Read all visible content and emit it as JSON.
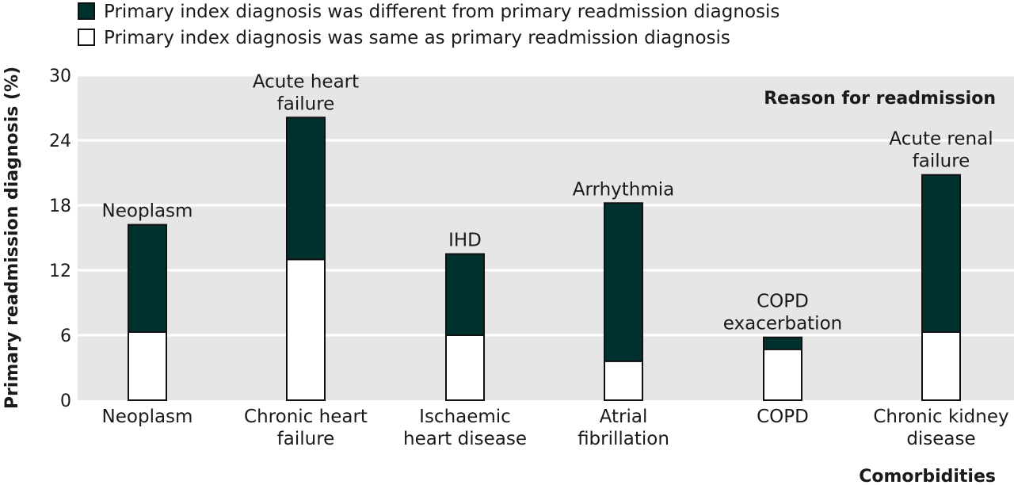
{
  "chart_data": {
    "type": "bar",
    "stacked": true,
    "title": "",
    "xlabel": "Comorbidities",
    "ylabel": "Primary readmission diagnosis (%)",
    "panel_label": "Reason for readmission",
    "ylim": [
      0,
      30
    ],
    "yticks": [
      0,
      6,
      12,
      18,
      24,
      30
    ],
    "grid": true,
    "legend_position": "top-left",
    "categories": [
      [
        "Neoplasm"
      ],
      [
        "Chronic heart",
        "failure"
      ],
      [
        "Ischaemic",
        "heart disease"
      ],
      [
        "Atrial",
        "fibrillation"
      ],
      [
        "COPD"
      ],
      [
        "Chronic kidney",
        "disease"
      ]
    ],
    "bar_labels": [
      [
        "Neoplasm"
      ],
      [
        "Acute heart",
        "failure"
      ],
      [
        "IHD"
      ],
      [
        "Arrhythmia"
      ],
      [
        "COPD",
        "exacerbation"
      ],
      [
        "Acute renal",
        "failure"
      ]
    ],
    "series": [
      {
        "name": "Primary index diagnosis was same as primary readmission diagnosis",
        "color": "#ffffff",
        "values": [
          6.3,
          13.0,
          6.0,
          3.6,
          4.7,
          6.3
        ]
      },
      {
        "name": "Primary index diagnosis was different from primary readmission diagnosis",
        "color": "#00312f",
        "values": [
          9.9,
          13.1,
          7.5,
          14.6,
          1.1,
          14.5
        ]
      }
    ],
    "legend_order": [
      1,
      0
    ]
  }
}
